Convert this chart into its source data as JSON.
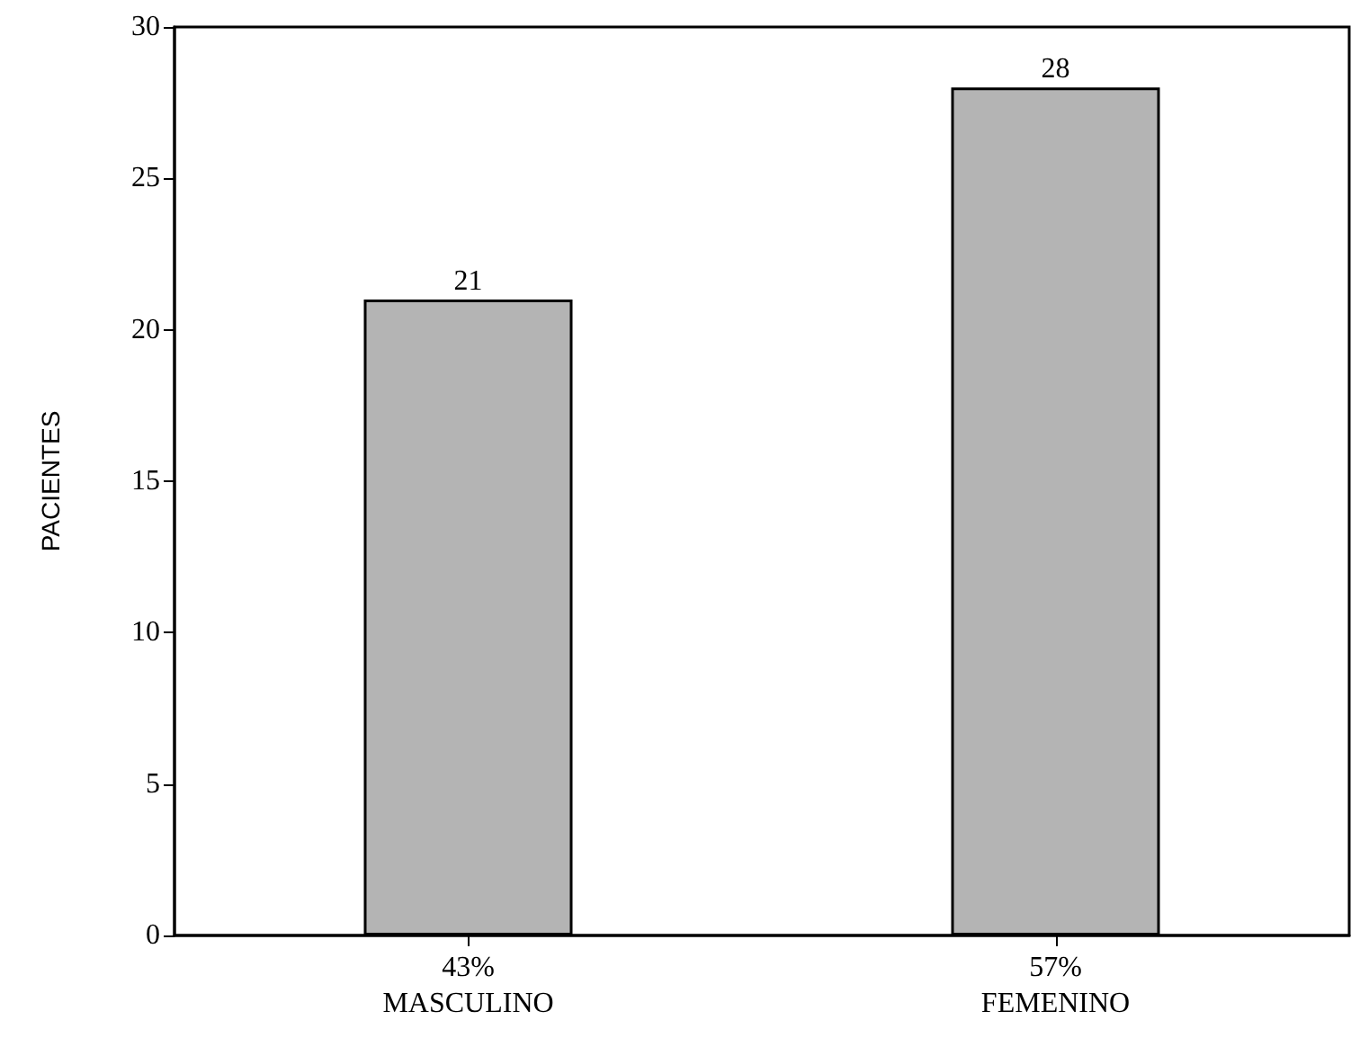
{
  "chart_data": {
    "type": "bar",
    "ylabel": "PACIENTES",
    "categories": [
      "43%\nMASCULINO",
      "57%\nFEMENINO"
    ],
    "values": [
      21,
      28
    ],
    "color": "#b4b4b4",
    "ylim": [
      0,
      30
    ],
    "yticks": [
      0,
      5,
      10,
      15,
      20,
      25,
      30
    ],
    "data_labels": true
  }
}
